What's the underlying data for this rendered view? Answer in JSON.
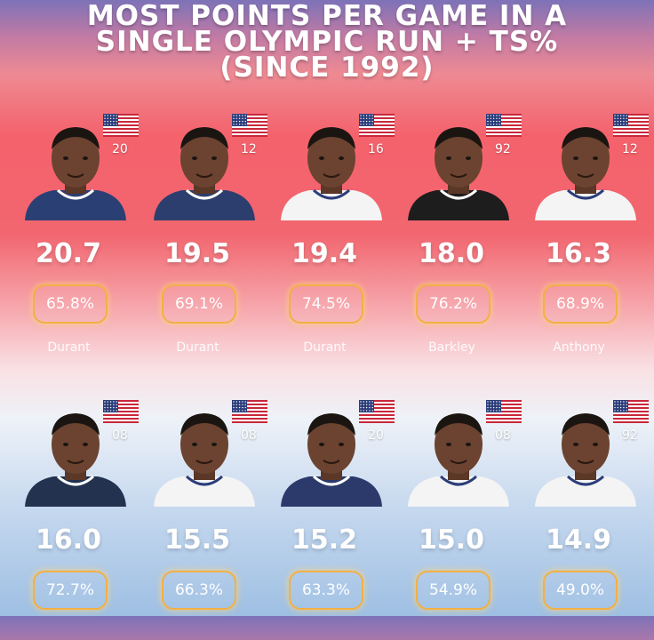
{
  "title": {
    "line1": "MOST POINTS PER GAME IN A",
    "line2": "SINGLE OLYMPIC RUN + TS%",
    "line3": "(SINCE 1992)"
  },
  "players": [
    {
      "name": "Durant",
      "year": "20",
      "ppg": "20.7",
      "ts": "65.8%",
      "jersey": "#2a3f73"
    },
    {
      "name": "Durant",
      "year": "12",
      "ppg": "19.5",
      "ts": "69.1%",
      "jersey": "#2c3e6d"
    },
    {
      "name": "Durant",
      "year": "16",
      "ppg": "19.4",
      "ts": "74.5%",
      "jersey": "#f4f4f4"
    },
    {
      "name": "Barkley",
      "year": "92",
      "ppg": "18.0",
      "ts": "76.2%",
      "jersey": "#1d1d1d"
    },
    {
      "name": "Anthony",
      "year": "12",
      "ppg": "16.3",
      "ts": "68.9%",
      "jersey": "#f4f4f4"
    },
    {
      "name": "",
      "year": "08",
      "ppg": "16.0",
      "ts": "72.7%",
      "jersey": "#23324f"
    },
    {
      "name": "",
      "year": "08",
      "ppg": "15.5",
      "ts": "66.3%",
      "jersey": "#f4f4f4"
    },
    {
      "name": "",
      "year": "20",
      "ppg": "15.2",
      "ts": "63.3%",
      "jersey": "#2b3a6a"
    },
    {
      "name": "",
      "year": "08",
      "ppg": "15.0",
      "ts": "54.9%",
      "jersey": "#f4f4f4"
    },
    {
      "name": "",
      "year": "92",
      "ppg": "14.9",
      "ts": "49.0%",
      "jersey": "#f4f4f4"
    }
  ],
  "icons": {
    "flag": "usa-flag-icon",
    "photo": "player-photo"
  }
}
